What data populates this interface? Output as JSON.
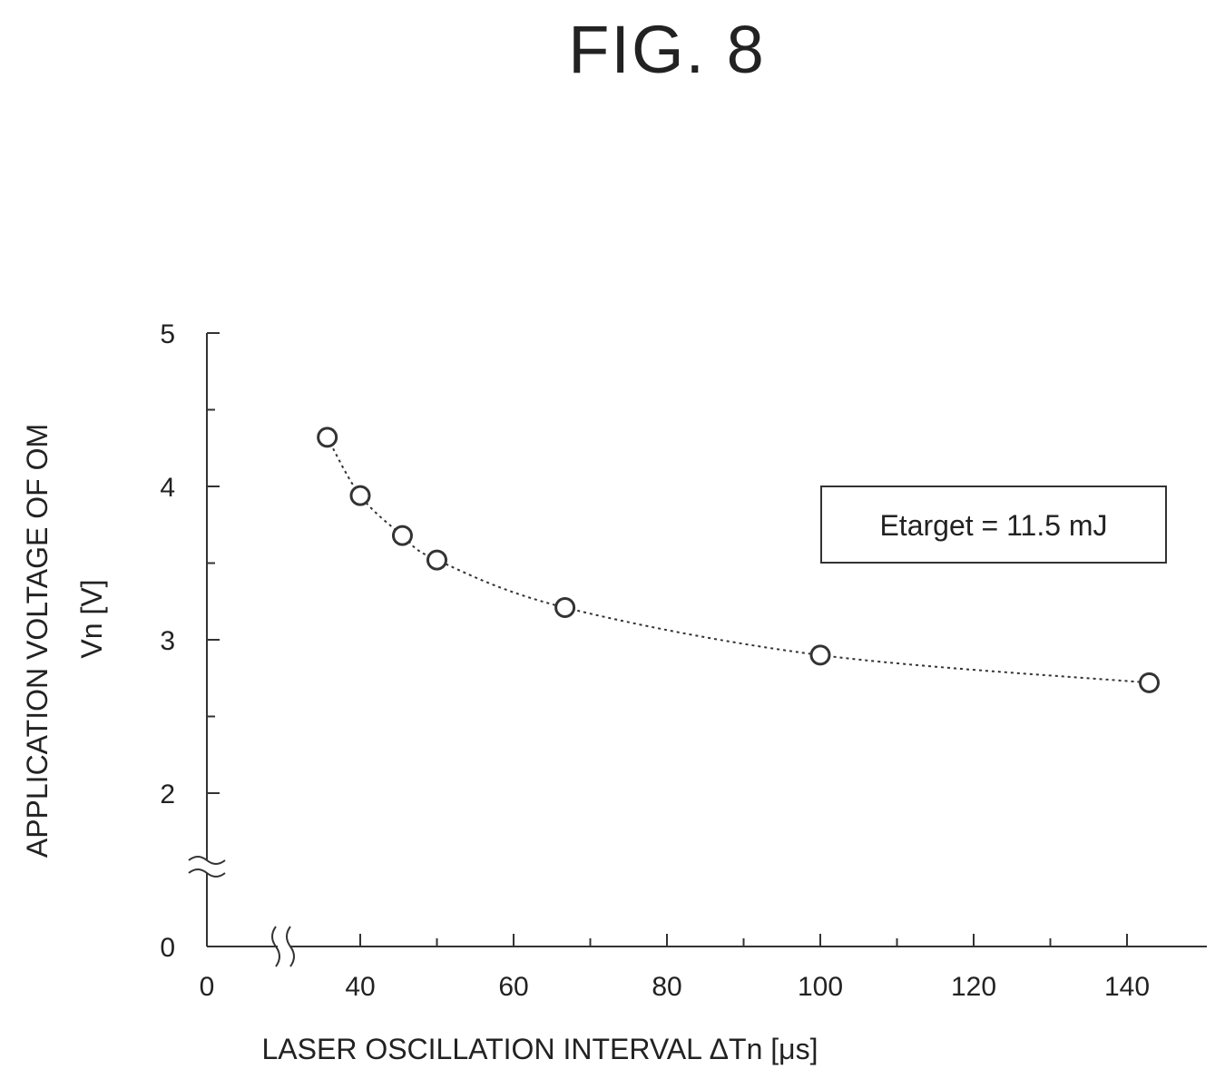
{
  "figure_title": "FIG. 8",
  "chart_data": {
    "type": "line",
    "ylabel_line1": "APPLICATION VOLTAGE OF OM",
    "ylabel_line2": "Vn [V]",
    "xlabel": "LASER OSCILLATION INTERVAL   ΔTn [μs]",
    "annotation": "Etarget = 11.5 mJ",
    "x_ticks": [
      "0",
      "40",
      "60",
      "80",
      "100",
      "120",
      "140"
    ],
    "y_ticks": [
      "0",
      "2",
      "3",
      "4",
      "5"
    ],
    "xlim": [
      20,
      150
    ],
    "ylim": [
      1,
      5
    ],
    "axis_breaks": [
      "x",
      "y"
    ],
    "marker": "open-circle",
    "line_style": "dotted",
    "series": [
      {
        "x": [
          35.7,
          40,
          45.5,
          50,
          66.7,
          100,
          142.9
        ],
        "y": [
          4.32,
          3.94,
          3.68,
          3.52,
          3.21,
          2.9,
          2.72
        ]
      }
    ]
  }
}
